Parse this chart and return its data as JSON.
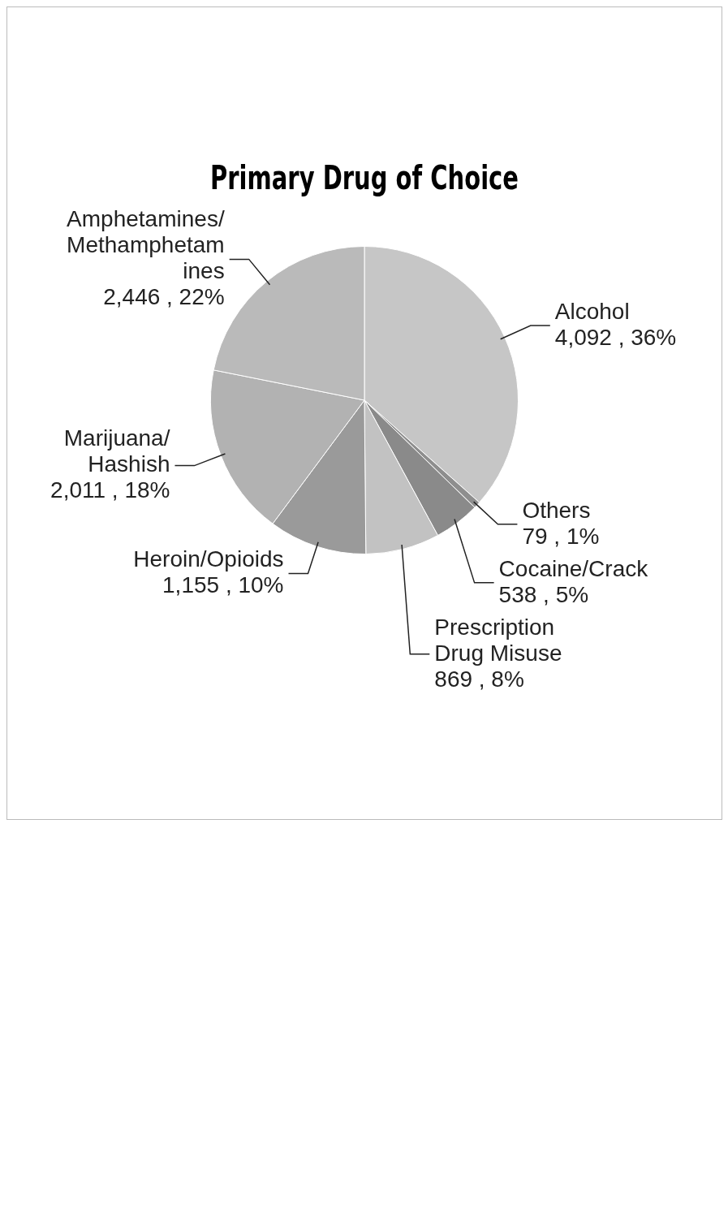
{
  "chart_data": {
    "type": "pie",
    "title": "Primary Drug of Choice",
    "categories": [
      "Alcohol",
      "Others",
      "Cocaine/Crack",
      "Prescription Drug Misuse",
      "Heroin/Opioids",
      "Marijuana/Hashish",
      "Amphetamines/Methamphetamines"
    ],
    "values": [
      4092,
      79,
      538,
      869,
      1155,
      2011,
      2446
    ],
    "value_labels": [
      "4,092 , 36%",
      "79 , 1%",
      "538 , 5%",
      "869 , 8%",
      "1,155 , 10%",
      "2,011 , 18%",
      "2,446 , 22%"
    ],
    "colors": [
      "#c6c6c6",
      "#8e8e8e",
      "#8a8a8a",
      "#c2c2c2",
      "#9a9a9a",
      "#b2b2b2",
      "#bababa"
    ],
    "legend": false
  }
}
